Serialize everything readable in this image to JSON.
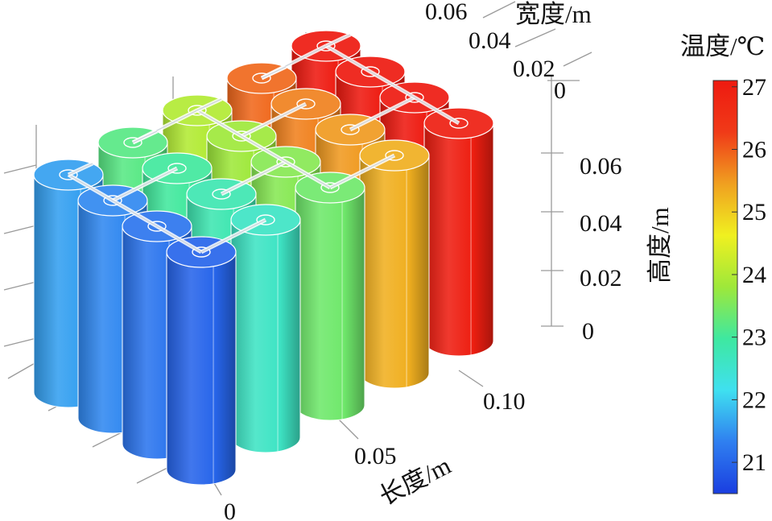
{
  "colorbar": {
    "title": "温度/℃",
    "min": 20.5,
    "max": 27.1,
    "ticks": [
      "27",
      "26",
      "25",
      "24",
      "23",
      "22",
      "21"
    ],
    "stops": [
      "#1a3ee0",
      "#2f7ff0",
      "#3fe0f0",
      "#3ee8a0",
      "#9ee83a",
      "#f0f020",
      "#f0a020",
      "#f03a18",
      "#ee1a10"
    ]
  },
  "axes": {
    "length": {
      "label": "长度/m",
      "ticks": [
        "0",
        "0.05",
        "0.10"
      ]
    },
    "width": {
      "label": "宽度/m",
      "ticks": [
        "0.06",
        "0.04",
        "0.02",
        "0"
      ]
    },
    "height": {
      "label": "高度/m",
      "ticks": [
        "0.06",
        "0.04",
        "0.02",
        "0"
      ]
    }
  },
  "battery_grid": {
    "rows": 4,
    "cols": 5,
    "column_temperatures_c": [
      21.0,
      22.6,
      23.4,
      25.3,
      27.0
    ],
    "row_offset_c": [
      0.0,
      0.2,
      0.4,
      0.6
    ]
  }
}
